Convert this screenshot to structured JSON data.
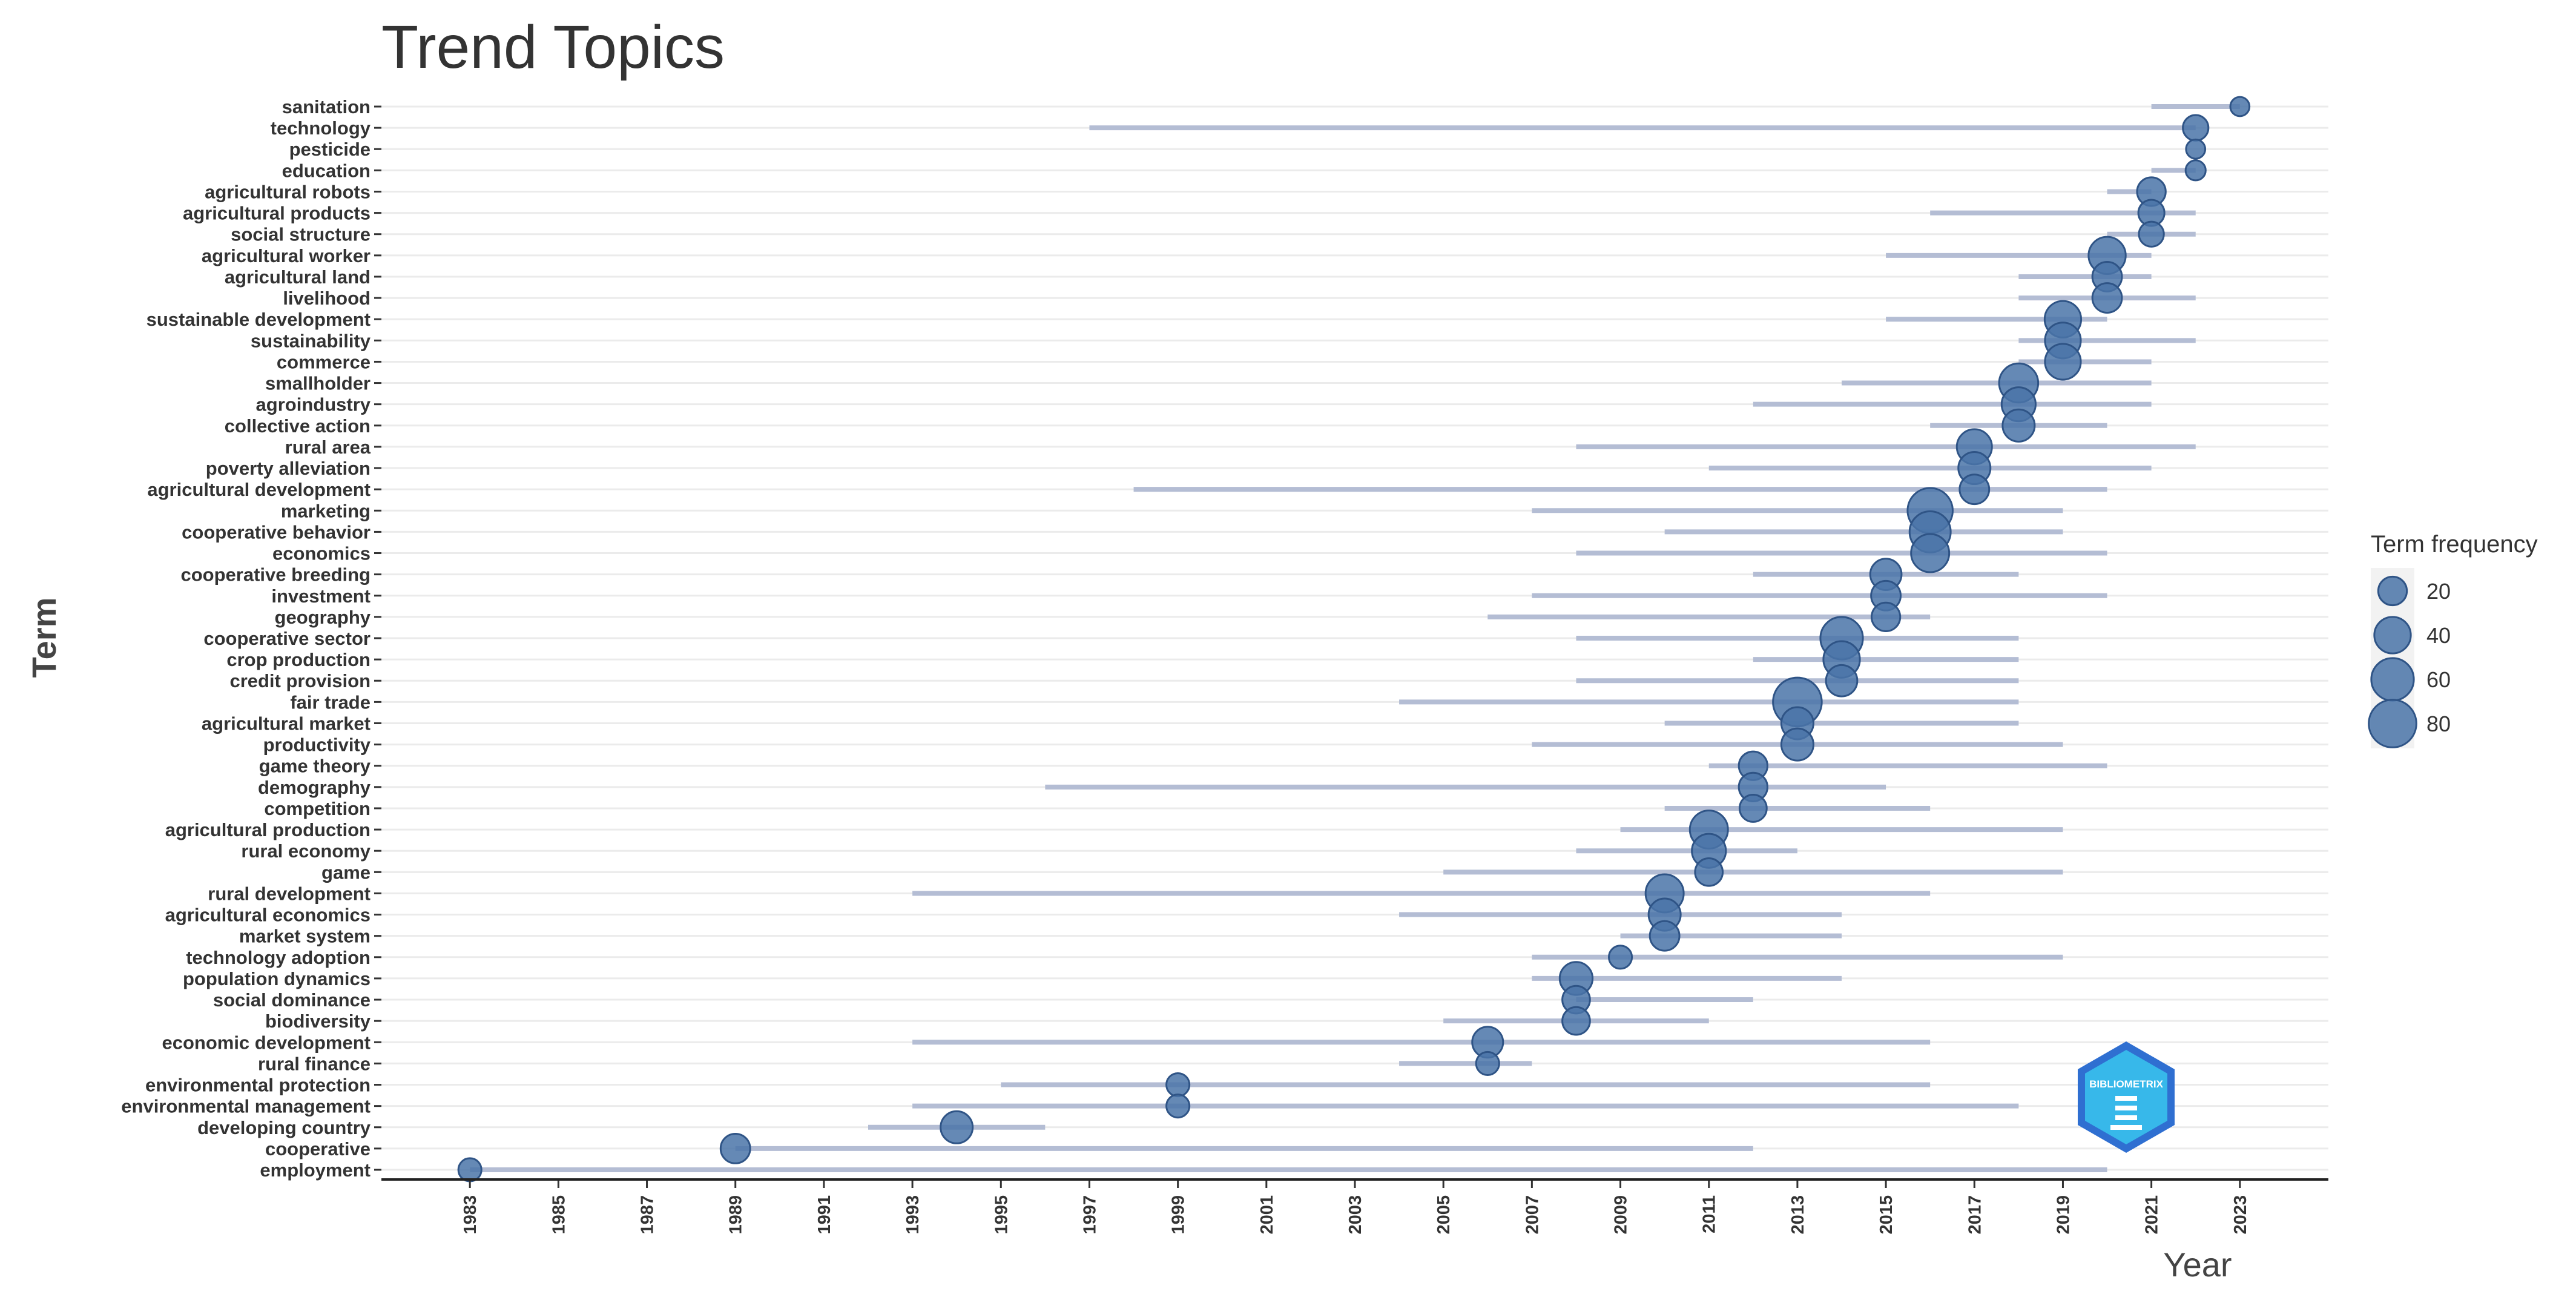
{
  "chart_data": {
    "type": "scatter",
    "title": "Trend Topics",
    "xlabel": "Year",
    "ylabel": "Term",
    "xlim": [
      1981,
      2025
    ],
    "x_ticks": [
      1983,
      1985,
      1987,
      1989,
      1991,
      1993,
      1995,
      1997,
      1999,
      2001,
      2003,
      2005,
      2007,
      2009,
      2011,
      2013,
      2015,
      2017,
      2019,
      2021,
      2023
    ],
    "grid": "horizontal",
    "legend": {
      "title": "Term frequency",
      "placement": "right",
      "sizes": [
        20,
        40,
        60,
        80
      ]
    },
    "colors": {
      "point": "#4a74a8",
      "range": "#b4bdd4",
      "grid": "#ebebeb"
    },
    "logo_text": "BIBLIOMETRIX",
    "terms": [
      {
        "term": "sanitation",
        "year_q1": 2021,
        "year_med": 2023,
        "year_q3": 2023,
        "freq": 5
      },
      {
        "term": "technology",
        "year_q1": 1997,
        "year_med": 2022,
        "year_q3": 2022,
        "freq": 14
      },
      {
        "term": "pesticide",
        "year_q1": 2022,
        "year_med": 2022,
        "year_q3": 2022,
        "freq": 5
      },
      {
        "term": "education",
        "year_q1": 2021,
        "year_med": 2022,
        "year_q3": 2022,
        "freq": 6
      },
      {
        "term": "agricultural robots",
        "year_q1": 2020,
        "year_med": 2021,
        "year_q3": 2021,
        "freq": 20
      },
      {
        "term": "agricultural products",
        "year_q1": 2016,
        "year_med": 2021,
        "year_q3": 2022,
        "freq": 15
      },
      {
        "term": "social structure",
        "year_q1": 2020,
        "year_med": 2021,
        "year_q3": 2022,
        "freq": 13
      },
      {
        "term": "agricultural worker",
        "year_q1": 2015,
        "year_med": 2020,
        "year_q3": 2021,
        "freq": 42
      },
      {
        "term": "agricultural land",
        "year_q1": 2018,
        "year_med": 2020,
        "year_q3": 2021,
        "freq": 22
      },
      {
        "term": "livelihood",
        "year_q1": 2018,
        "year_med": 2020,
        "year_q3": 2022,
        "freq": 22
      },
      {
        "term": "sustainable development",
        "year_q1": 2015,
        "year_med": 2019,
        "year_q3": 2020,
        "freq": 40
      },
      {
        "term": "sustainability",
        "year_q1": 2018,
        "year_med": 2019,
        "year_q3": 2022,
        "freq": 38
      },
      {
        "term": "commerce",
        "year_q1": 2018,
        "year_med": 2019,
        "year_q3": 2021,
        "freq": 38
      },
      {
        "term": "smallholder",
        "year_q1": 2014,
        "year_med": 2018,
        "year_q3": 2021,
        "freq": 48
      },
      {
        "term": "agroindustry",
        "year_q1": 2012,
        "year_med": 2018,
        "year_q3": 2021,
        "freq": 33
      },
      {
        "term": "collective action",
        "year_q1": 2016,
        "year_med": 2018,
        "year_q3": 2020,
        "freq": 28
      },
      {
        "term": "rural area",
        "year_q1": 2008,
        "year_med": 2017,
        "year_q3": 2022,
        "freq": 36
      },
      {
        "term": "poverty alleviation",
        "year_q1": 2011,
        "year_med": 2017,
        "year_q3": 2021,
        "freq": 28
      },
      {
        "term": "agricultural development",
        "year_q1": 1998,
        "year_med": 2017,
        "year_q3": 2020,
        "freq": 22
      },
      {
        "term": "marketing",
        "year_q1": 2007,
        "year_med": 2016,
        "year_q3": 2019,
        "freq": 70
      },
      {
        "term": "cooperative behavior",
        "year_q1": 2010,
        "year_med": 2016,
        "year_q3": 2019,
        "freq": 55
      },
      {
        "term": "economics",
        "year_q1": 2008,
        "year_med": 2016,
        "year_q3": 2020,
        "freq": 45
      },
      {
        "term": "cooperative breeding",
        "year_q1": 2012,
        "year_med": 2015,
        "year_q3": 2018,
        "freq": 26
      },
      {
        "term": "investment",
        "year_q1": 2007,
        "year_med": 2015,
        "year_q3": 2020,
        "freq": 22
      },
      {
        "term": "geography",
        "year_q1": 2006,
        "year_med": 2015,
        "year_q3": 2016,
        "freq": 20
      },
      {
        "term": "cooperative sector",
        "year_q1": 2008,
        "year_med": 2014,
        "year_q3": 2018,
        "freq": 60
      },
      {
        "term": "crop production",
        "year_q1": 2012,
        "year_med": 2014,
        "year_q3": 2018,
        "freq": 40
      },
      {
        "term": "credit provision",
        "year_q1": 2008,
        "year_med": 2014,
        "year_q3": 2018,
        "freq": 26
      },
      {
        "term": "fair trade",
        "year_q1": 2004,
        "year_med": 2013,
        "year_q3": 2018,
        "freq": 85
      },
      {
        "term": "agricultural market",
        "year_q1": 2010,
        "year_med": 2013,
        "year_q3": 2018,
        "freq": 28
      },
      {
        "term": "productivity",
        "year_q1": 2007,
        "year_med": 2013,
        "year_q3": 2019,
        "freq": 28
      },
      {
        "term": "game theory",
        "year_q1": 2011,
        "year_med": 2012,
        "year_q3": 2020,
        "freq": 20
      },
      {
        "term": "demography",
        "year_q1": 1996,
        "year_med": 2012,
        "year_q3": 2015,
        "freq": 20
      },
      {
        "term": "competition",
        "year_q1": 2010,
        "year_med": 2012,
        "year_q3": 2016,
        "freq": 17
      },
      {
        "term": "agricultural production",
        "year_q1": 2009,
        "year_med": 2011,
        "year_q3": 2019,
        "freq": 45
      },
      {
        "term": "rural economy",
        "year_q1": 2008,
        "year_med": 2011,
        "year_q3": 2013,
        "freq": 33
      },
      {
        "term": "game",
        "year_q1": 2005,
        "year_med": 2011,
        "year_q3": 2019,
        "freq": 18
      },
      {
        "term": "rural development",
        "year_q1": 1993,
        "year_med": 2010,
        "year_q3": 2016,
        "freq": 45
      },
      {
        "term": "agricultural economics",
        "year_q1": 2004,
        "year_med": 2010,
        "year_q3": 2014,
        "freq": 28
      },
      {
        "term": "market system",
        "year_q1": 2009,
        "year_med": 2010,
        "year_q3": 2014,
        "freq": 22
      },
      {
        "term": "technology adoption",
        "year_q1": 2007,
        "year_med": 2009,
        "year_q3": 2019,
        "freq": 10
      },
      {
        "term": "population dynamics",
        "year_q1": 2007,
        "year_med": 2008,
        "year_q3": 2014,
        "freq": 30
      },
      {
        "term": "social dominance",
        "year_q1": 2008,
        "year_med": 2008,
        "year_q3": 2012,
        "freq": 18
      },
      {
        "term": "biodiversity",
        "year_q1": 2005,
        "year_med": 2008,
        "year_q3": 2011,
        "freq": 18
      },
      {
        "term": "economic development",
        "year_q1": 1993,
        "year_med": 2006,
        "year_q3": 2016,
        "freq": 25
      },
      {
        "term": "rural finance",
        "year_q1": 2004,
        "year_med": 2006,
        "year_q3": 2007,
        "freq": 10
      },
      {
        "term": "environmental protection",
        "year_q1": 1995,
        "year_med": 1999,
        "year_q3": 2016,
        "freq": 10
      },
      {
        "term": "environmental management",
        "year_q1": 1993,
        "year_med": 1999,
        "year_q3": 2018,
        "freq": 10
      },
      {
        "term": "developing country",
        "year_q1": 1992,
        "year_med": 1994,
        "year_q3": 1996,
        "freq": 28
      },
      {
        "term": "cooperative",
        "year_q1": 1989,
        "year_med": 1989,
        "year_q3": 2012,
        "freq": 22
      },
      {
        "term": "employment",
        "year_q1": 1983,
        "year_med": 1983,
        "year_q3": 2020,
        "freq": 10
      }
    ]
  }
}
